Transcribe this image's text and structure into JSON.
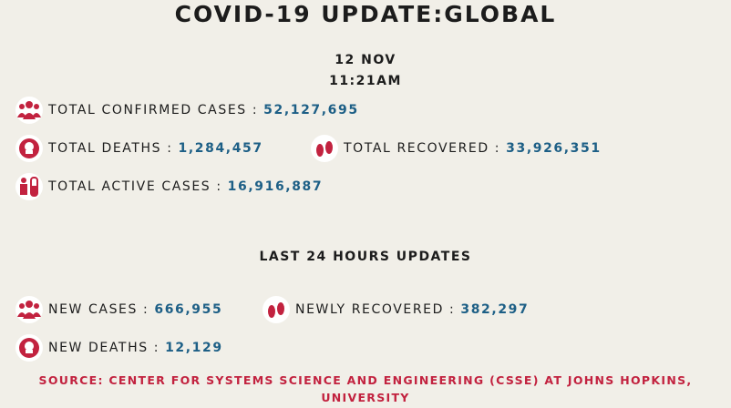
{
  "header": {
    "title": "COVID-19 UPDATE:GLOBAL",
    "date": "12 NOV",
    "time": "11:21AM"
  },
  "totals": [
    {
      "label": "TOTAL CONFIRMED CASES :",
      "value": "52,127,695"
    },
    {
      "label": "TOTAL DEATHS :",
      "value": "1,284,457"
    },
    {
      "label": "TOTAL RECOVERED :",
      "value": "33,926,351"
    },
    {
      "label": "TOTAL ACTIVE CASES :",
      "value": "16,916,887"
    }
  ],
  "last24": {
    "heading": "LAST 24 HOURS UPDATES",
    "items": [
      {
        "label": "NEW CASES :",
        "value": "666,955"
      },
      {
        "label": "NEWLY RECOVERED :",
        "value": "382,297"
      },
      {
        "label": "NEW DEATHS :",
        "value": "12,129"
      }
    ]
  },
  "source": "SOURCE: CENTER FOR SYSTEMS SCIENCE AND ENGINEERING (CSSE) AT JOHNS HOPKINS, UNIVERSITY"
}
